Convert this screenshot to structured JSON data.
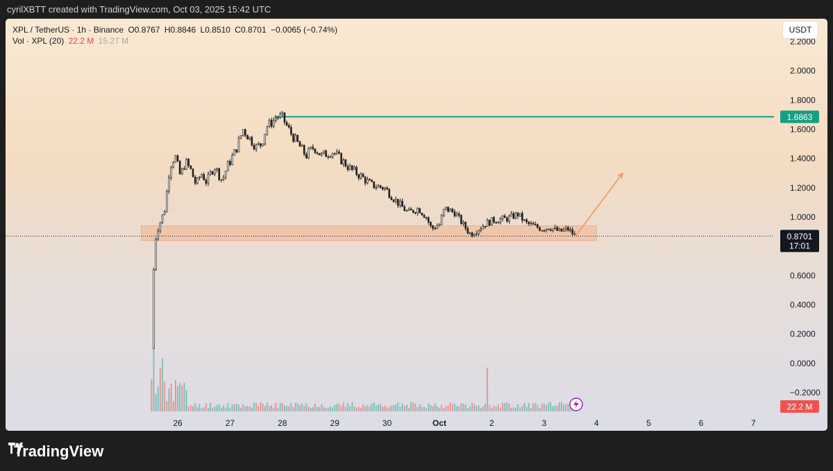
{
  "header": {
    "credit": "cyrilXBTT created with TradingView.com, Oct 03, 2025 15:42 UTC"
  },
  "legend": {
    "symbol": "XPL / TetherUS · 1h · Binance",
    "open": "O0.8767",
    "high": "H0.8846",
    "low": "L0.8510",
    "close": "C0.8701",
    "change": "−0.0065 (−0.74%)",
    "vol_label": "Vol · XPL (20)",
    "vol_value": "22.2 M",
    "vol_ma": "15.27 M"
  },
  "unit_button": "USDT",
  "footer": {
    "brand": "TradingView"
  },
  "colors": {
    "up": "#26a69a",
    "down": "#ef5350",
    "resistance": "#14a085",
    "zone": "#f2b896",
    "arrow": "#f08a4b"
  },
  "chart_data": {
    "type": "candlestick",
    "pair": "XPL / TetherUS",
    "interval": "1h",
    "x_ticks": [
      "26",
      "27",
      "28",
      "29",
      "30",
      "Oct",
      "2",
      "3",
      "4",
      "5",
      "6",
      "7"
    ],
    "y_ticks": [
      "−0.2000",
      "0.0000",
      "0.2000",
      "0.4000",
      "0.6000",
      "0.8000",
      "1.0000",
      "1.2000",
      "1.4000",
      "1.6000",
      "1.8000",
      "2.0000",
      "2.2000"
    ],
    "ylim": [
      -0.3,
      2.3
    ],
    "price_path": [
      [
        25.5,
        0.1
      ],
      [
        25.55,
        0.75
      ],
      [
        25.6,
        0.9
      ],
      [
        25.75,
        1.05
      ],
      [
        25.85,
        1.35
      ],
      [
        25.95,
        1.42
      ],
      [
        26.05,
        1.28
      ],
      [
        26.15,
        1.38
      ],
      [
        26.25,
        1.32
      ],
      [
        26.35,
        1.22
      ],
      [
        26.45,
        1.3
      ],
      [
        26.55,
        1.24
      ],
      [
        26.7,
        1.35
      ],
      [
        26.85,
        1.25
      ],
      [
        26.95,
        1.35
      ],
      [
        27.1,
        1.45
      ],
      [
        27.25,
        1.6
      ],
      [
        27.35,
        1.55
      ],
      [
        27.5,
        1.48
      ],
      [
        27.6,
        1.5
      ],
      [
        27.7,
        1.62
      ],
      [
        27.8,
        1.65
      ],
      [
        27.9,
        1.69
      ],
      [
        28.0,
        1.68
      ],
      [
        28.15,
        1.58
      ],
      [
        28.3,
        1.5
      ],
      [
        28.45,
        1.42
      ],
      [
        28.6,
        1.48
      ],
      [
        28.75,
        1.42
      ],
      [
        28.95,
        1.45
      ],
      [
        29.1,
        1.4
      ],
      [
        29.3,
        1.33
      ],
      [
        29.5,
        1.28
      ],
      [
        29.7,
        1.22
      ],
      [
        29.95,
        1.2
      ],
      [
        30.2,
        1.1
      ],
      [
        30.4,
        1.03
      ],
      [
        30.6,
        1.06
      ],
      [
        30.75,
        1.0
      ],
      [
        30.85,
        0.92
      ],
      [
        31.0,
        0.95
      ],
      [
        31.1,
        1.06
      ],
      [
        31.3,
        1.03
      ],
      [
        31.45,
        0.95
      ],
      [
        31.6,
        0.88
      ],
      [
        31.75,
        0.92
      ],
      [
        31.9,
        0.96
      ],
      [
        32.05,
        0.98
      ],
      [
        32.3,
        0.99
      ],
      [
        32.5,
        1.02
      ],
      [
        32.65,
        0.96
      ],
      [
        32.8,
        0.94
      ],
      [
        32.95,
        0.92
      ],
      [
        33.1,
        0.93
      ],
      [
        33.3,
        0.9
      ],
      [
        33.45,
        0.92
      ],
      [
        33.6,
        0.87
      ]
    ],
    "volume_spikes": [
      [
        25.55,
        100
      ],
      [
        25.65,
        70
      ],
      [
        25.7,
        85
      ],
      [
        31.9,
        70
      ]
    ],
    "resistance_level": 1.6863,
    "resistance_label": "1.6863",
    "support_zone": [
      0.84,
      0.94
    ],
    "current_price": 0.8701,
    "current_price_label": "0.8701",
    "countdown": "17:01",
    "volume_label": "22.2 M",
    "projection_arrow": {
      "from": [
        33.6,
        0.87
      ],
      "to": [
        34.5,
        1.3
      ]
    }
  }
}
